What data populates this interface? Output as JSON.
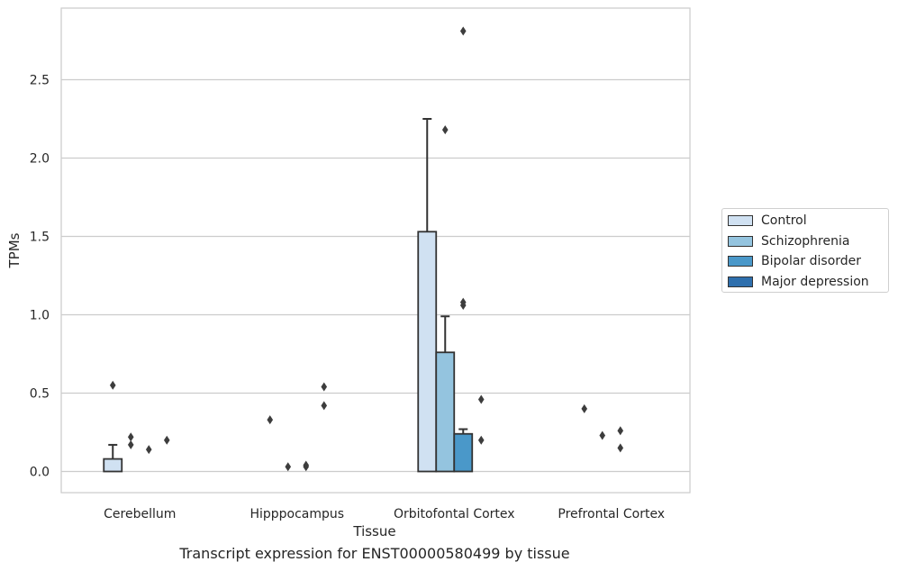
{
  "chart_data": {
    "type": "bar",
    "xlabel": "Tissue",
    "ylabel": "TPMs",
    "ylim": [
      -0.14,
      2.9
    ],
    "yticks": [
      "0.0",
      "0.5",
      "1.0",
      "1.5",
      "2.0",
      "2.5"
    ],
    "ytick_values": [
      0.0,
      0.5,
      1.0,
      1.5,
      2.0,
      2.5
    ],
    "grid": true,
    "legend_position": "right",
    "categories": [
      "Cerebellum",
      "Hipppocampus",
      "Orbitofontal Cortex",
      "Prefrontal Cortex"
    ],
    "series": [
      {
        "name": "Control",
        "color": "#d0e1f2",
        "values": [
          0.08,
          0.0,
          1.53,
          0.0
        ],
        "error_upper": [
          0.17,
          null,
          2.25,
          null
        ],
        "outliers": [
          [
            0.55
          ],
          [
            0.33
          ],
          [],
          [
            0.4
          ]
        ]
      },
      {
        "name": "Schizophrenia",
        "color": "#94c4df",
        "values": [
          0.0,
          0.0,
          0.76,
          0.0
        ],
        "error_upper": [
          null,
          null,
          0.99,
          null
        ],
        "outliers": [
          [
            0.17,
            0.22
          ],
          [
            0.03
          ],
          [
            2.18
          ],
          [
            0.23
          ]
        ]
      },
      {
        "name": "Bipolar disorder",
        "color": "#4a98c9",
        "values": [
          0.0,
          0.0,
          0.24,
          0.0
        ],
        "error_upper": [
          null,
          null,
          0.27,
          null
        ],
        "outliers": [
          [
            0.14
          ],
          [
            0.03,
            0.04
          ],
          [
            1.06,
            1.08,
            2.81
          ],
          [
            0.15,
            0.26
          ]
        ]
      },
      {
        "name": "Major depression",
        "color": "#2e6fad",
        "values": [
          0.0,
          0.0,
          0.0,
          0.0
        ],
        "error_upper": [
          null,
          null,
          null,
          null
        ],
        "outliers": [
          [
            0.2
          ],
          [
            0.42,
            0.54
          ],
          [
            0.2,
            0.46
          ],
          []
        ]
      }
    ]
  },
  "caption": "Transcript expression for ENST00000580499 by tissue"
}
